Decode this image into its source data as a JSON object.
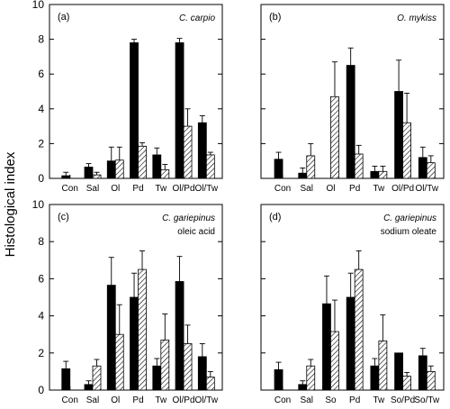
{
  "figure": {
    "ylabel": "Histological index"
  },
  "colors": {
    "solid": "#000000",
    "hatch": "#000000",
    "background": "#ffffff"
  },
  "chart_data": [
    {
      "type": "bar",
      "panel": "(a)",
      "species": "C. carpio",
      "subtitle": "",
      "categories": [
        "Con",
        "Sal",
        "Ol",
        "Pd",
        "Tw",
        "Ol/Pd",
        "Ol/Tw"
      ],
      "series": [
        {
          "style": "solid",
          "values": [
            0.15,
            0.65,
            1.0,
            7.8,
            1.35,
            7.8,
            3.2
          ],
          "errors": [
            0.2,
            0.2,
            0.8,
            0.2,
            0.4,
            0.25,
            0.4
          ]
        },
        {
          "style": "hatch",
          "values": [
            null,
            0.2,
            1.05,
            1.85,
            0.5,
            3.0,
            1.35
          ],
          "errors": [
            0,
            0.15,
            0.75,
            0.2,
            0.3,
            1.0,
            0.15
          ]
        }
      ],
      "ylim": [
        0,
        10
      ],
      "yticks": [
        0,
        2,
        4,
        6,
        8,
        10
      ],
      "show_tick_labels": true
    },
    {
      "type": "bar",
      "panel": "(b)",
      "species": "O. mykiss",
      "subtitle": "",
      "categories": [
        "Con",
        "Sal",
        "Ol",
        "Pd",
        "Tw",
        "Ol/Pd",
        "Ol/Tw"
      ],
      "series": [
        {
          "style": "solid",
          "values": [
            1.1,
            0.3,
            null,
            6.5,
            0.4,
            5.0,
            1.2
          ],
          "errors": [
            0.4,
            0.3,
            0,
            1.0,
            0.3,
            1.8,
            0.6
          ]
        },
        {
          "style": "hatch",
          "values": [
            null,
            1.3,
            4.7,
            1.4,
            0.4,
            3.2,
            0.9
          ],
          "errors": [
            0,
            0.7,
            2.0,
            0.5,
            0.3,
            1.7,
            0.4
          ]
        }
      ],
      "ylim": [
        0,
        10
      ],
      "yticks": [
        0,
        2,
        4,
        6,
        8,
        10
      ],
      "show_tick_labels": false
    },
    {
      "type": "bar",
      "panel": "(c)",
      "species": "C. gariepinus",
      "subtitle": "oleic acid",
      "categories": [
        "Con",
        "Sal",
        "Ol",
        "Pd",
        "Tw",
        "Ol/Pd",
        "Ol/Tw"
      ],
      "series": [
        {
          "style": "solid",
          "values": [
            1.15,
            0.3,
            5.65,
            5.0,
            1.3,
            5.85,
            1.8
          ],
          "errors": [
            0.4,
            0.2,
            1.5,
            1.3,
            0.4,
            1.35,
            0.7
          ]
        },
        {
          "style": "hatch",
          "values": [
            null,
            1.3,
            3.0,
            6.5,
            2.7,
            2.5,
            0.7
          ],
          "errors": [
            0,
            0.35,
            1.6,
            1.0,
            1.4,
            1.0,
            0.3
          ]
        }
      ],
      "ylim": [
        0,
        10
      ],
      "yticks": [
        0,
        2,
        4,
        6,
        8,
        10
      ],
      "show_tick_labels": true
    },
    {
      "type": "bar",
      "panel": "(d)",
      "species": "C. gariepinus",
      "subtitle": "sodium oleate",
      "categories": [
        "Con",
        "Sal",
        "So",
        "Pd",
        "Tw",
        "So/Pd",
        "So/Tw"
      ],
      "series": [
        {
          "style": "solid",
          "values": [
            1.1,
            0.3,
            4.65,
            5.0,
            1.3,
            2.0,
            1.85
          ],
          "errors": [
            0.4,
            0.2,
            1.5,
            1.3,
            0.4,
            0,
            0.4
          ]
        },
        {
          "style": "hatch",
          "values": [
            null,
            1.3,
            3.15,
            6.5,
            2.65,
            0.75,
            1.0
          ],
          "errors": [
            0,
            0.35,
            1.7,
            1.0,
            1.4,
            0.2,
            0.3
          ]
        }
      ],
      "ylim": [
        0,
        10
      ],
      "yticks": [
        0,
        2,
        4,
        6,
        8,
        10
      ],
      "show_tick_labels": false
    }
  ]
}
